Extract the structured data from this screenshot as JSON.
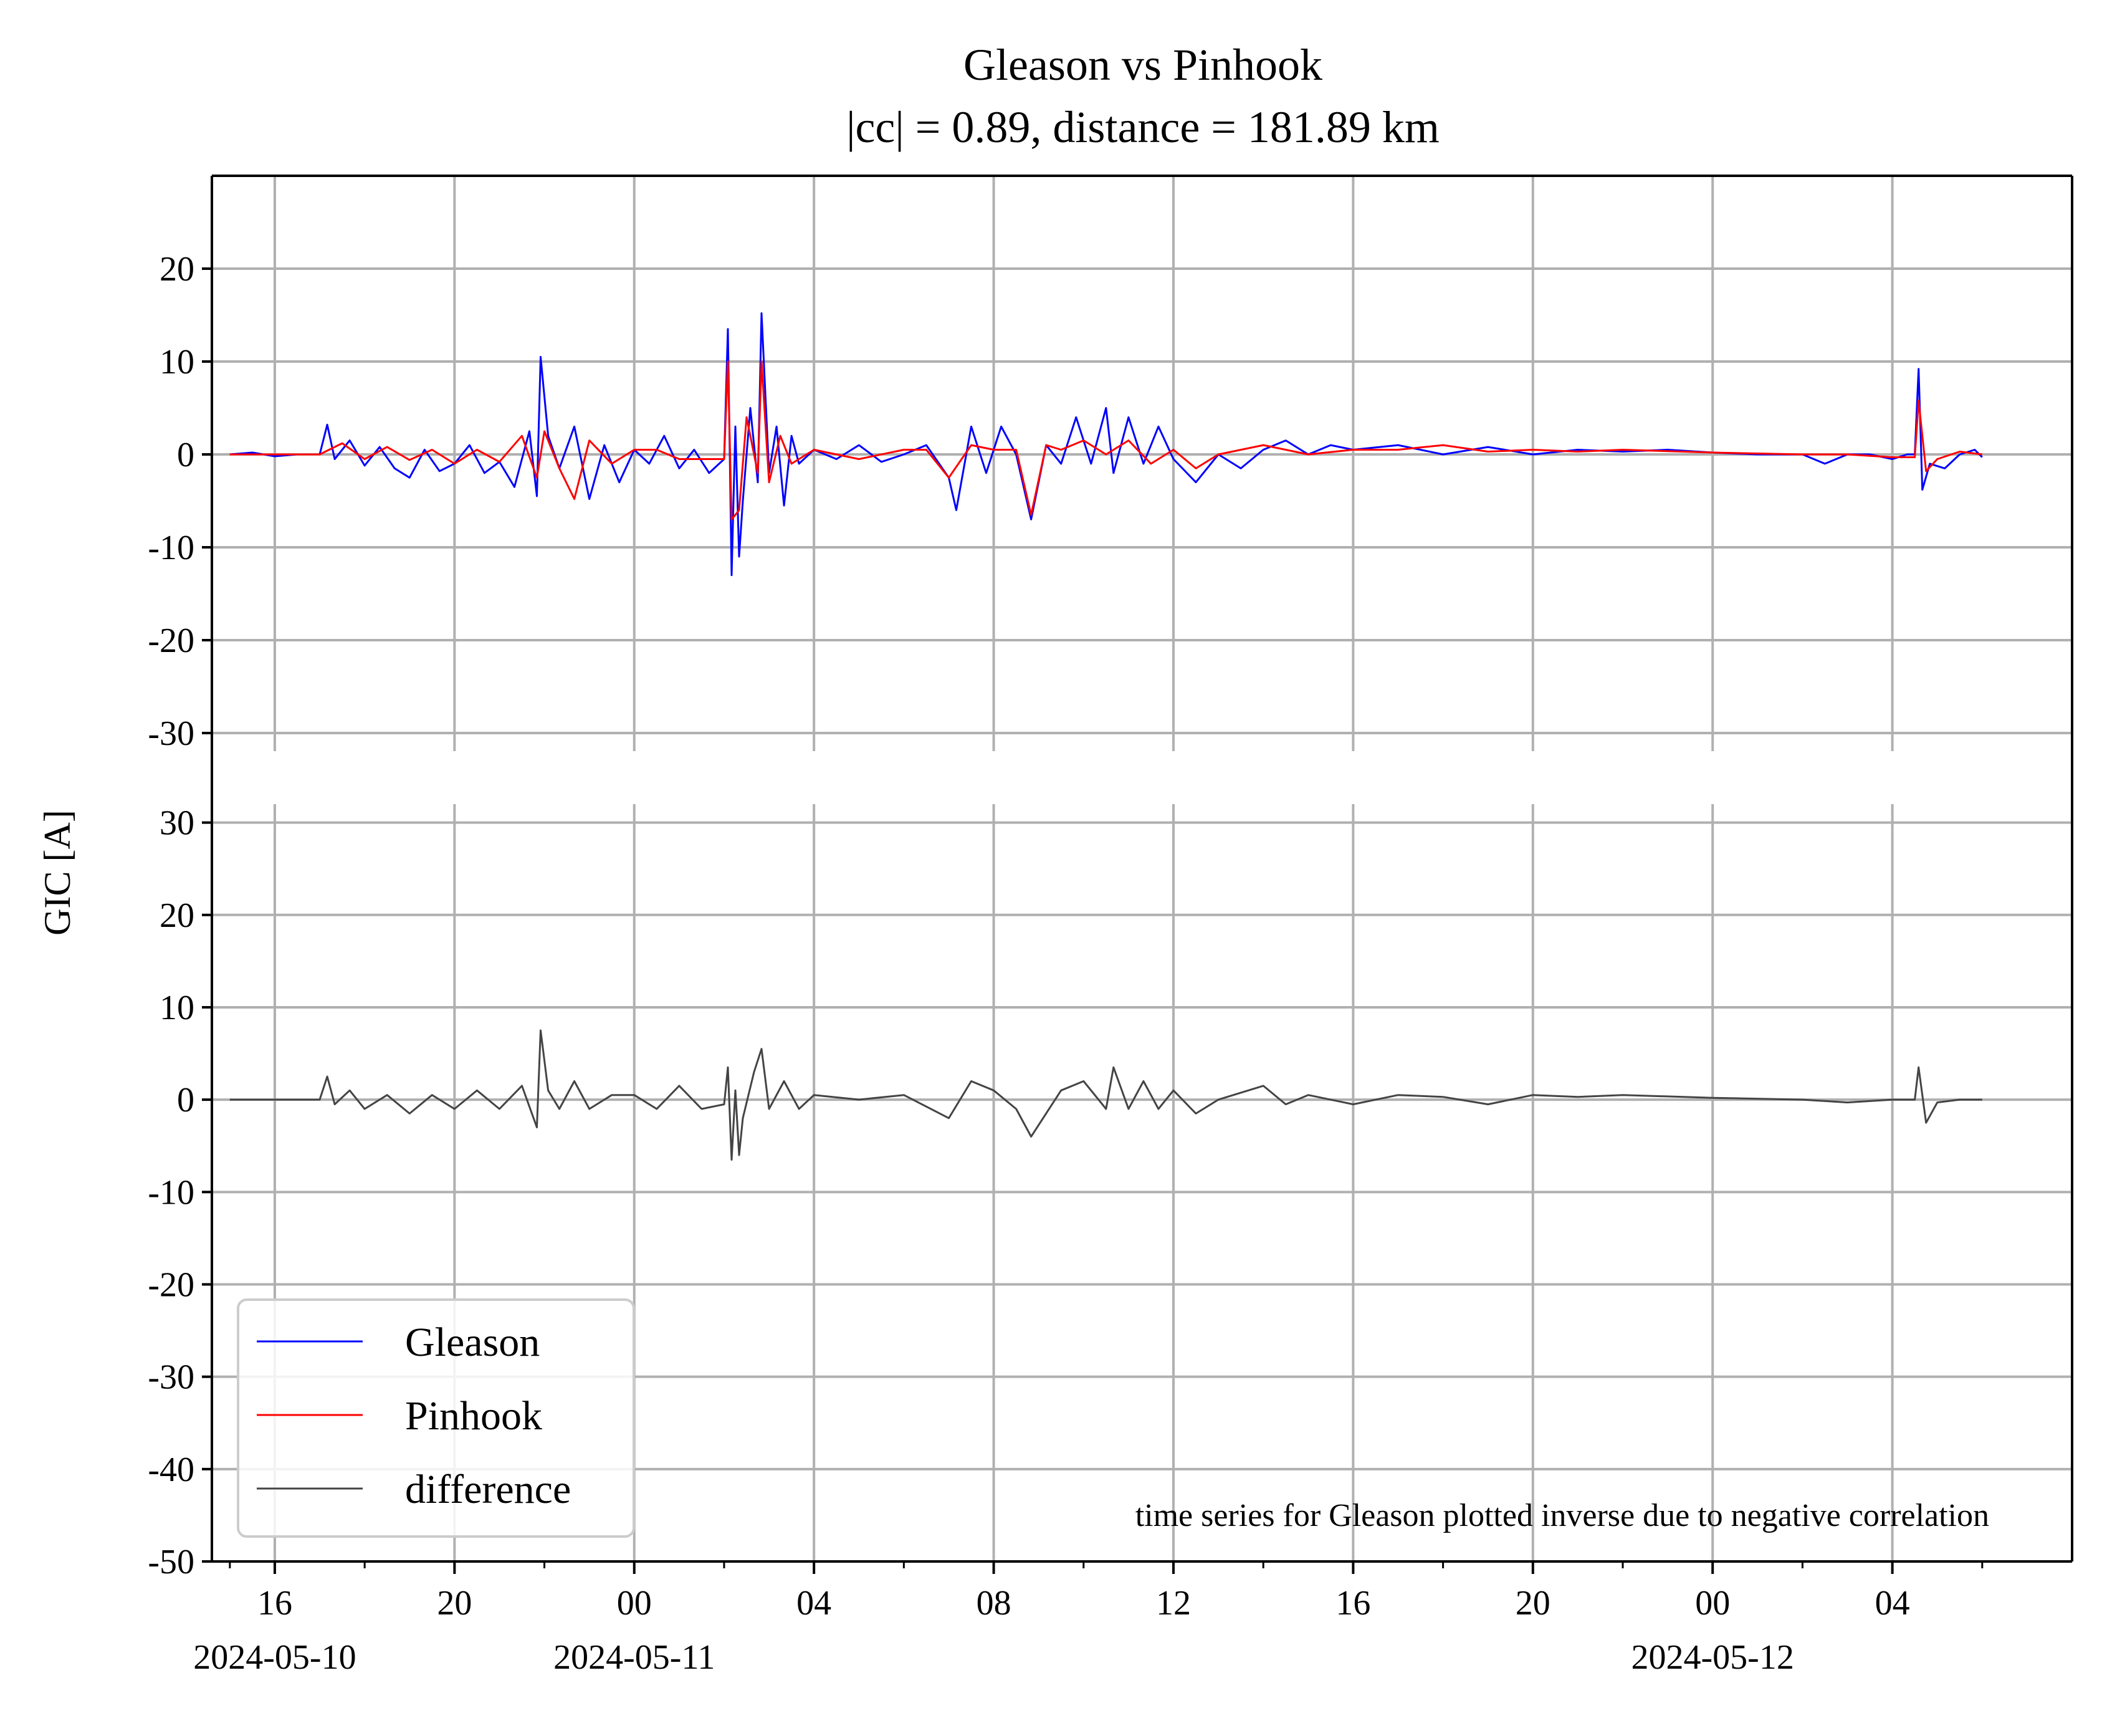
{
  "chart_data": {
    "type": "line",
    "title": [
      "Gleason vs Pinhook",
      "|cc| = 0.89, distance = 181.89 km"
    ],
    "ylabel": "GIC [A]",
    "annotation": "time series for Gleason plotted inverse due to negative correlation",
    "grid": true,
    "legend": {
      "placement": "lower-left",
      "entries": [
        {
          "name": "Gleason",
          "color": "#0000ff"
        },
        {
          "name": "Pinhook",
          "color": "#ff0000"
        },
        {
          "name": "difference",
          "color": "#444444"
        }
      ]
    },
    "x_axis": {
      "range": [
        "2024-05-10T14:36",
        "2024-05-12T08:00"
      ],
      "ticks": [
        {
          "t": "2024-05-10T16:00",
          "label": "16",
          "date": "2024-05-10"
        },
        {
          "t": "2024-05-10T20:00",
          "label": "20",
          "date": ""
        },
        {
          "t": "2024-05-11T00:00",
          "label": "00",
          "date": "2024-05-11"
        },
        {
          "t": "2024-05-11T04:00",
          "label": "04",
          "date": ""
        },
        {
          "t": "2024-05-11T08:00",
          "label": "08",
          "date": ""
        },
        {
          "t": "2024-05-11T12:00",
          "label": "12",
          "date": ""
        },
        {
          "t": "2024-05-11T16:00",
          "label": "16",
          "date": ""
        },
        {
          "t": "2024-05-11T20:00",
          "label": "20",
          "date": ""
        },
        {
          "t": "2024-05-12T00:00",
          "label": "00",
          "date": "2024-05-12"
        },
        {
          "t": "2024-05-12T04:00",
          "label": "04",
          "date": ""
        }
      ],
      "minor_ticks": [
        "2024-05-10T15:00",
        "2024-05-10T18:00",
        "2024-05-10T22:00",
        "2024-05-11T02:00",
        "2024-05-11T06:00",
        "2024-05-11T10:00",
        "2024-05-11T14:00",
        "2024-05-11T18:00",
        "2024-05-11T22:00",
        "2024-05-12T02:00",
        "2024-05-12T06:00"
      ]
    },
    "panels": [
      {
        "name": "top",
        "ylim": [
          -30,
          30
        ],
        "yticks": [
          -30,
          -20,
          -10,
          0,
          10,
          20
        ],
        "series": [
          {
            "name": "Gleason",
            "color": "#0000ff",
            "x": [
              "2024-05-10T15:00",
              "2024-05-10T15:30",
              "2024-05-10T16:00",
              "2024-05-10T16:30",
              "2024-05-10T17:00",
              "2024-05-10T17:10",
              "2024-05-10T17:20",
              "2024-05-10T17:40",
              "2024-05-10T18:00",
              "2024-05-10T18:20",
              "2024-05-10T18:40",
              "2024-05-10T19:00",
              "2024-05-10T19:20",
              "2024-05-10T19:40",
              "2024-05-10T20:00",
              "2024-05-10T20:20",
              "2024-05-10T20:40",
              "2024-05-10T21:00",
              "2024-05-10T21:20",
              "2024-05-10T21:40",
              "2024-05-10T21:50",
              "2024-05-10T21:55",
              "2024-05-10T22:05",
              "2024-05-10T22:20",
              "2024-05-10T22:40",
              "2024-05-10T23:00",
              "2024-05-10T23:20",
              "2024-05-10T23:40",
              "2024-05-11T00:00",
              "2024-05-11T00:20",
              "2024-05-11T00:40",
              "2024-05-11T01:00",
              "2024-05-11T01:20",
              "2024-05-11T01:40",
              "2024-05-11T02:00",
              "2024-05-11T02:05",
              "2024-05-11T02:10",
              "2024-05-11T02:15",
              "2024-05-11T02:20",
              "2024-05-11T02:25",
              "2024-05-11T02:35",
              "2024-05-11T02:45",
              "2024-05-11T02:50",
              "2024-05-11T03:00",
              "2024-05-11T03:10",
              "2024-05-11T03:20",
              "2024-05-11T03:30",
              "2024-05-11T03:40",
              "2024-05-11T04:00",
              "2024-05-11T04:30",
              "2024-05-11T05:00",
              "2024-05-11T05:30",
              "2024-05-11T06:00",
              "2024-05-11T06:30",
              "2024-05-11T07:00",
              "2024-05-11T07:10",
              "2024-05-11T07:30",
              "2024-05-11T07:50",
              "2024-05-11T08:10",
              "2024-05-11T08:30",
              "2024-05-11T08:50",
              "2024-05-11T09:10",
              "2024-05-11T09:30",
              "2024-05-11T09:50",
              "2024-05-11T10:10",
              "2024-05-11T10:30",
              "2024-05-11T10:40",
              "2024-05-11T11:00",
              "2024-05-11T11:20",
              "2024-05-11T11:40",
              "2024-05-11T12:00",
              "2024-05-11T12:30",
              "2024-05-11T13:00",
              "2024-05-11T13:30",
              "2024-05-11T14:00",
              "2024-05-11T14:30",
              "2024-05-11T15:00",
              "2024-05-11T15:30",
              "2024-05-11T16:00",
              "2024-05-11T17:00",
              "2024-05-11T18:00",
              "2024-05-11T19:00",
              "2024-05-11T20:00",
              "2024-05-11T21:00",
              "2024-05-11T22:00",
              "2024-05-11T23:00",
              "2024-05-12T00:00",
              "2024-05-12T01:00",
              "2024-05-12T02:00",
              "2024-05-12T02:30",
              "2024-05-12T03:00",
              "2024-05-12T03:30",
              "2024-05-12T04:00",
              "2024-05-12T04:20",
              "2024-05-12T04:30",
              "2024-05-12T04:35",
              "2024-05-12T04:40",
              "2024-05-12T04:50",
              "2024-05-12T05:10",
              "2024-05-12T05:30",
              "2024-05-12T05:50",
              "2024-05-12T06:00"
            ],
            "y": [
              0,
              0.2,
              -0.2,
              0,
              0,
              3.2,
              -0.5,
              1.5,
              -1.2,
              0.8,
              -1.5,
              -2.5,
              0.5,
              -1.8,
              -1,
              1,
              -2,
              -0.8,
              -3.5,
              2.5,
              -4.5,
              10.5,
              2,
              -1.5,
              3,
              -4.8,
              1,
              -3,
              0.5,
              -1,
              2,
              -1.5,
              0.5,
              -2,
              -0.5,
              13.5,
              -13,
              3,
              -11,
              -5,
              5,
              -3,
              15.2,
              -2,
              3,
              -5.5,
              2,
              -1,
              0.5,
              -0.5,
              1,
              -0.8,
              0,
              1,
              -2.5,
              -6,
              3,
              -2,
              3,
              0,
              -7,
              1,
              -1,
              4,
              -1,
              5,
              -2,
              4,
              -1,
              3,
              -0.5,
              -3,
              0,
              -1.5,
              0.5,
              1.5,
              0,
              1,
              0.5,
              1,
              0,
              0.8,
              0,
              0.5,
              0.3,
              0.5,
              0.2,
              0,
              0,
              -1,
              0,
              0,
              -0.5,
              0,
              0,
              9.2,
              -3.8,
              -1,
              -1.5,
              0,
              0.5,
              -0.3
            ]
          },
          {
            "name": "Pinhook",
            "color": "#ff0000",
            "x": [
              "2024-05-10T15:00",
              "2024-05-10T16:00",
              "2024-05-10T17:00",
              "2024-05-10T17:30",
              "2024-05-10T18:00",
              "2024-05-10T18:30",
              "2024-05-10T19:00",
              "2024-05-10T19:30",
              "2024-05-10T20:00",
              "2024-05-10T20:30",
              "2024-05-10T21:00",
              "2024-05-10T21:30",
              "2024-05-10T21:50",
              "2024-05-10T22:00",
              "2024-05-10T22:20",
              "2024-05-10T22:40",
              "2024-05-10T23:00",
              "2024-05-10T23:30",
              "2024-05-11T00:00",
              "2024-05-11T00:30",
              "2024-05-11T01:00",
              "2024-05-11T01:30",
              "2024-05-11T02:00",
              "2024-05-11T02:05",
              "2024-05-11T02:10",
              "2024-05-11T02:20",
              "2024-05-11T02:30",
              "2024-05-11T02:45",
              "2024-05-11T02:50",
              "2024-05-11T03:00",
              "2024-05-11T03:15",
              "2024-05-11T03:30",
              "2024-05-11T04:00",
              "2024-05-11T05:00",
              "2024-05-11T06:00",
              "2024-05-11T06:30",
              "2024-05-11T07:00",
              "2024-05-11T07:30",
              "2024-05-11T08:00",
              "2024-05-11T08:30",
              "2024-05-11T08:50",
              "2024-05-11T09:10",
              "2024-05-11T09:30",
              "2024-05-11T10:00",
              "2024-05-11T10:30",
              "2024-05-11T11:00",
              "2024-05-11T11:30",
              "2024-05-11T12:00",
              "2024-05-11T12:30",
              "2024-05-11T13:00",
              "2024-05-11T14:00",
              "2024-05-11T15:00",
              "2024-05-11T16:00",
              "2024-05-11T17:00",
              "2024-05-11T18:00",
              "2024-05-11T19:00",
              "2024-05-11T20:00",
              "2024-05-11T21:00",
              "2024-05-11T22:00",
              "2024-05-12T00:00",
              "2024-05-12T02:00",
              "2024-05-12T03:00",
              "2024-05-12T04:00",
              "2024-05-12T04:30",
              "2024-05-12T04:35",
              "2024-05-12T04:45",
              "2024-05-12T05:00",
              "2024-05-12T05:30",
              "2024-05-12T06:00"
            ],
            "y": [
              0,
              0,
              0,
              1.2,
              -0.5,
              0.8,
              -0.6,
              0.5,
              -1,
              0.5,
              -0.8,
              2,
              -2.5,
              2.5,
              -1.5,
              -4.8,
              1.5,
              -1,
              0.5,
              0.5,
              -0.5,
              -0.5,
              -0.5,
              10,
              -7,
              -6,
              4,
              -2,
              10,
              -3,
              2,
              -1,
              0.5,
              -0.5,
              0.5,
              0.5,
              -2.5,
              1,
              0.5,
              0.5,
              -6.5,
              1,
              0.5,
              1.5,
              0,
              1.5,
              -1,
              0.5,
              -1.5,
              0,
              1,
              0,
              0.5,
              0.5,
              1,
              0.3,
              0.5,
              0.3,
              0.5,
              0.2,
              0,
              0,
              -0.3,
              -0.3,
              5.8,
              -1.8,
              -0.5,
              0.3,
              0
            ]
          }
        ]
      },
      {
        "name": "bottom",
        "ylim": [
          -50,
          32
        ],
        "yticks": [
          -50,
          -40,
          -30,
          -20,
          -10,
          0,
          10,
          20,
          30
        ],
        "series": [
          {
            "name": "difference",
            "color": "#444444",
            "x": [
              "2024-05-10T15:00",
              "2024-05-10T16:00",
              "2024-05-10T17:00",
              "2024-05-10T17:10",
              "2024-05-10T17:20",
              "2024-05-10T17:40",
              "2024-05-10T18:00",
              "2024-05-10T18:30",
              "2024-05-10T19:00",
              "2024-05-10T19:30",
              "2024-05-10T20:00",
              "2024-05-10T20:30",
              "2024-05-10T21:00",
              "2024-05-10T21:30",
              "2024-05-10T21:50",
              "2024-05-10T21:55",
              "2024-05-10T22:05",
              "2024-05-10T22:20",
              "2024-05-10T22:40",
              "2024-05-10T23:00",
              "2024-05-10T23:30",
              "2024-05-11T00:00",
              "2024-05-11T00:30",
              "2024-05-11T01:00",
              "2024-05-11T01:30",
              "2024-05-11T02:00",
              "2024-05-11T02:05",
              "2024-05-11T02:10",
              "2024-05-11T02:15",
              "2024-05-11T02:20",
              "2024-05-11T02:25",
              "2024-05-11T02:40",
              "2024-05-11T02:50",
              "2024-05-11T03:00",
              "2024-05-11T03:20",
              "2024-05-11T03:40",
              "2024-05-11T04:00",
              "2024-05-11T05:00",
              "2024-05-11T06:00",
              "2024-05-11T07:00",
              "2024-05-11T07:30",
              "2024-05-11T08:00",
              "2024-05-11T08:30",
              "2024-05-11T08:50",
              "2024-05-11T09:30",
              "2024-05-11T10:00",
              "2024-05-11T10:30",
              "2024-05-11T10:40",
              "2024-05-11T11:00",
              "2024-05-11T11:20",
              "2024-05-11T11:40",
              "2024-05-11T12:00",
              "2024-05-11T12:30",
              "2024-05-11T13:00",
              "2024-05-11T14:00",
              "2024-05-11T14:30",
              "2024-05-11T15:00",
              "2024-05-11T16:00",
              "2024-05-11T17:00",
              "2024-05-11T18:00",
              "2024-05-11T19:00",
              "2024-05-11T20:00",
              "2024-05-11T21:00",
              "2024-05-11T22:00",
              "2024-05-12T00:00",
              "2024-05-12T02:00",
              "2024-05-12T03:00",
              "2024-05-12T04:00",
              "2024-05-12T04:30",
              "2024-05-12T04:35",
              "2024-05-12T04:45",
              "2024-05-12T05:00",
              "2024-05-12T05:30",
              "2024-05-12T06:00"
            ],
            "y": [
              0,
              0,
              0,
              2.5,
              -0.5,
              1,
              -1,
              0.5,
              -1.5,
              0.5,
              -1,
              1,
              -1,
              1.5,
              -3,
              7.5,
              1,
              -1,
              2,
              -1,
              0.5,
              0.5,
              -1,
              1.5,
              -1,
              -0.5,
              3.5,
              -6.5,
              1,
              -6,
              -2,
              3,
              5.5,
              -1,
              2,
              -1,
              0.5,
              0,
              0.5,
              -2,
              2,
              1,
              -1,
              -4,
              1,
              2,
              -1,
              3.5,
              -1,
              2,
              -1,
              1,
              -1.5,
              0,
              1.5,
              -0.5,
              0.5,
              -0.5,
              0.5,
              0.3,
              -0.5,
              0.5,
              0.3,
              0.5,
              0.2,
              0,
              -0.3,
              0,
              0,
              3.5,
              -2.5,
              -0.3,
              0,
              0
            ]
          }
        ]
      }
    ]
  }
}
